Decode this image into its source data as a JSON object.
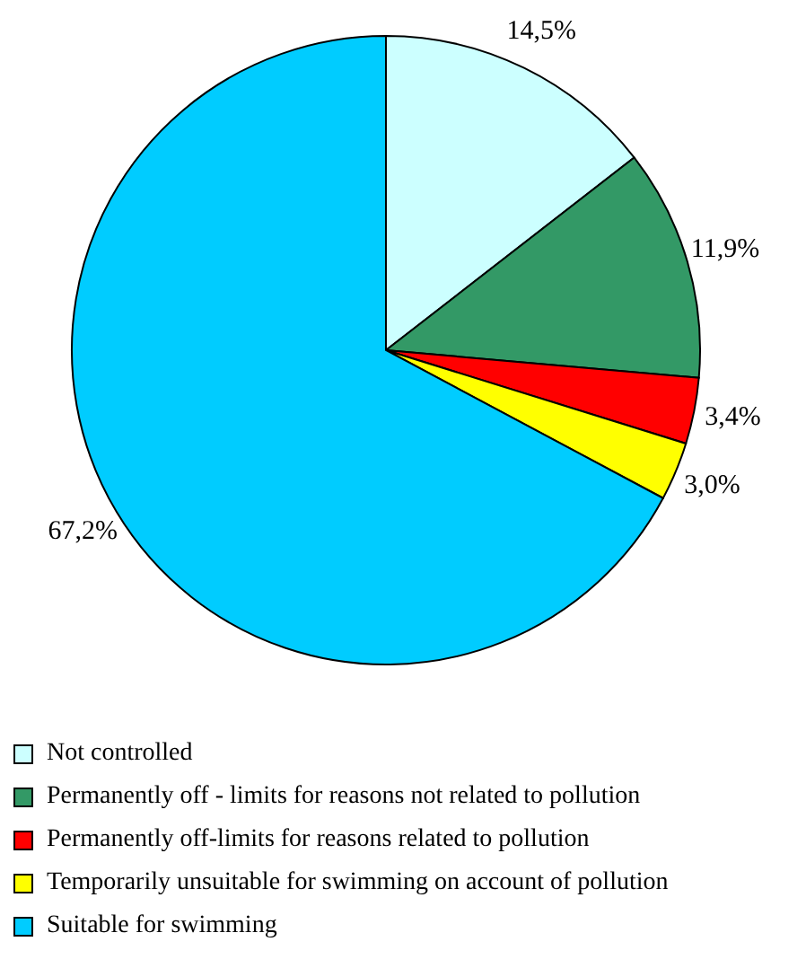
{
  "chart_data": {
    "type": "pie",
    "categories": [
      "Not controlled",
      "Permanently off - limits for reasons not related to pollution",
      "Permanently off-limits for reasons related to pollution",
      "Temporarily unsuitable for swimming on account of pollution",
      "Suitable for swimming"
    ],
    "values": [
      14.5,
      11.9,
      3.4,
      3.0,
      67.2
    ],
    "value_labels": [
      "14,5%",
      "11,9%",
      "3,4%",
      "3,0%",
      "67,2%"
    ],
    "colors": [
      "#ccffff",
      "#339966",
      "#ff0000",
      "#ffff00",
      "#00ccff"
    ],
    "legend": "bottom"
  }
}
